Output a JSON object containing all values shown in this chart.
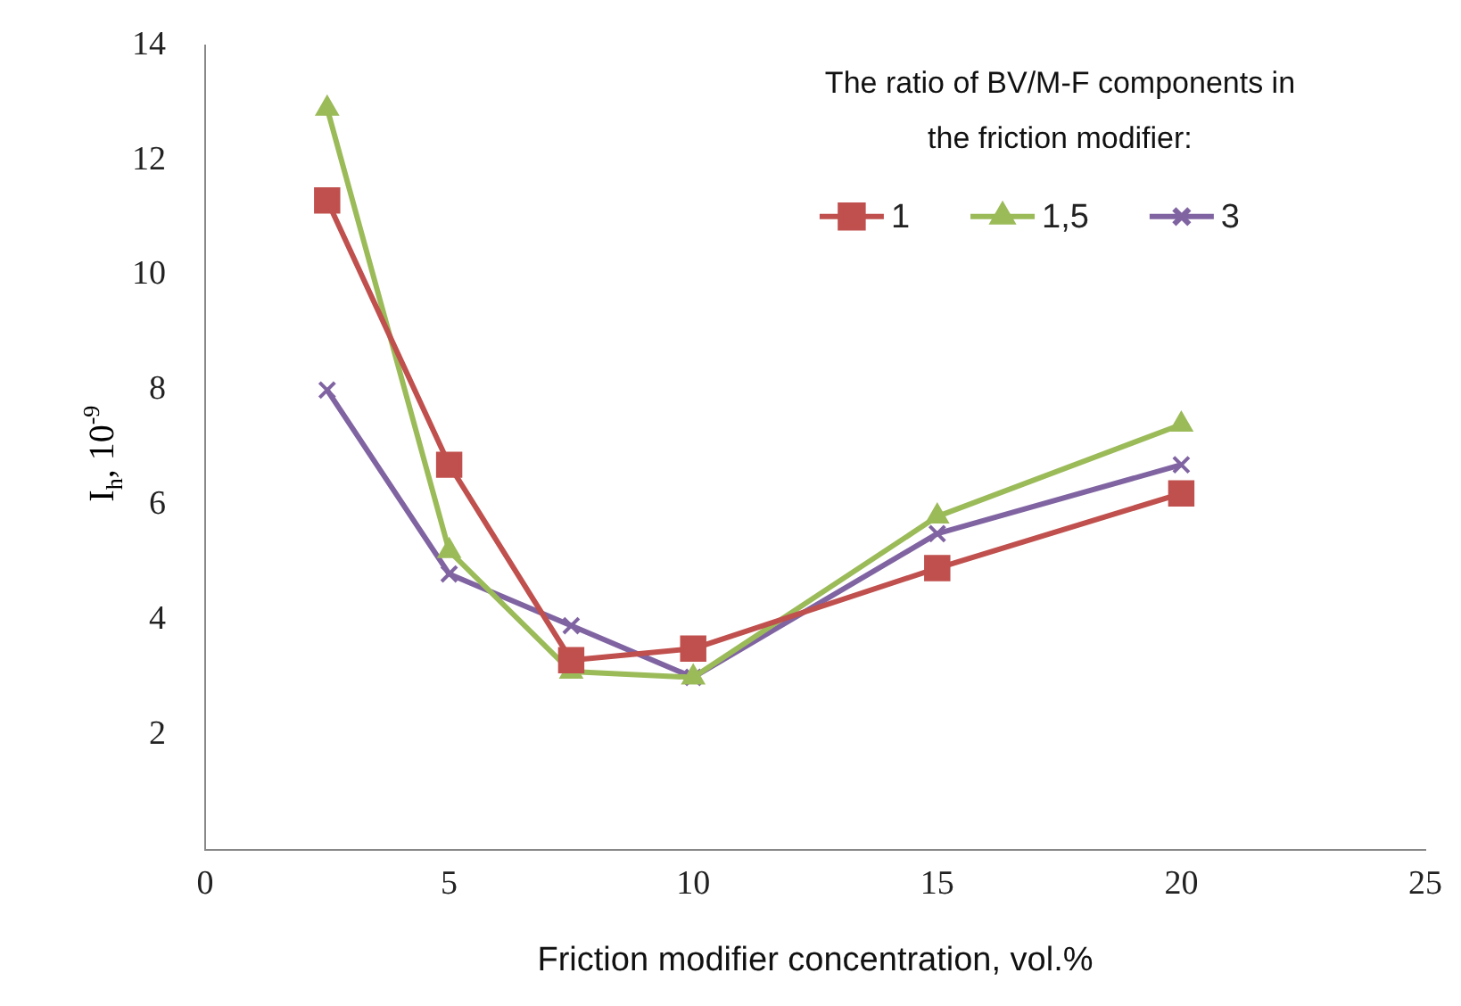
{
  "chart_data": {
    "type": "line",
    "xlabel": "Friction modifier concentration, vol.%",
    "ylabel": "I$_{h}$, 10$^{-9}$",
    "legend_title": "The ratio of BV/M-F components in the friction modifier:",
    "legend": "top right",
    "grid": false,
    "xlim": [
      0,
      25
    ],
    "xticks": [
      0,
      5,
      10,
      15,
      20,
      25
    ],
    "ylim": [
      0,
      14
    ],
    "yticks": [
      2,
      4,
      6,
      8,
      10,
      12,
      14
    ],
    "series": [
      {
        "name": "1",
        "color": "#c0504d",
        "marker": "square",
        "x": [
          2.5,
          5,
          7.5,
          10,
          15,
          20
        ],
        "values": [
          11.3,
          6.7,
          3.3,
          3.5,
          4.9,
          6.2
        ]
      },
      {
        "name": "1,5",
        "color": "#9bbb59",
        "marker": "triangle",
        "x": [
          2.5,
          5,
          7.5,
          10,
          15,
          20
        ],
        "values": [
          12.9,
          5.2,
          3.1,
          3.0,
          5.8,
          7.4
        ]
      },
      {
        "name": "3",
        "color": "#8064a2",
        "marker": "cross",
        "x": [
          2.5,
          5,
          7.5,
          10,
          15,
          20
        ],
        "values": [
          8.0,
          4.8,
          3.9,
          3.0,
          5.5,
          6.7
        ]
      }
    ]
  }
}
